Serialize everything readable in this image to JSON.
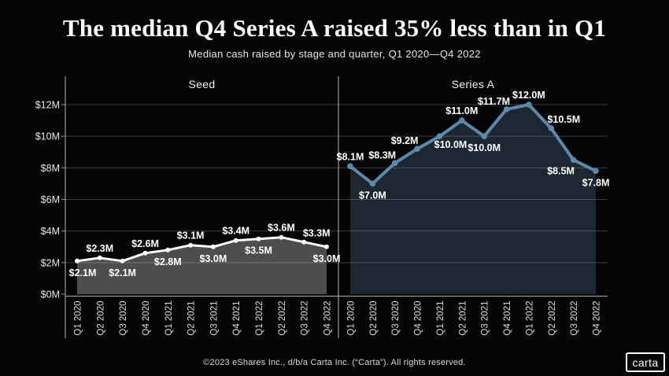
{
  "page": {
    "background": "#050505"
  },
  "header": {
    "title": "The median Q4 Series A raised 35% less than in Q1",
    "subtitle": "Median cash raised by stage and quarter, Q1 2020—Q4 2022"
  },
  "footer": {
    "copyright": "©2023 eShares Inc., d/b/a Carta Inc. (“Carta”). All rights reserved.",
    "logo_text": "carta"
  },
  "chart_data": {
    "type": "area",
    "categories": [
      "Q1 2020",
      "Q2 2020",
      "Q3 2020",
      "Q4 2020",
      "Q1 2021",
      "Q2 2021",
      "Q3 2021",
      "Q4 2021",
      "Q1 2022",
      "Q2 2022",
      "Q3 2022",
      "Q4 2022"
    ],
    "ylim": [
      0,
      12
    ],
    "grid": true,
    "y_ticks": [
      {
        "label": "$0M",
        "value": 0
      },
      {
        "label": "$2M",
        "value": 2
      },
      {
        "label": "$4M",
        "value": 4
      },
      {
        "label": "$6M",
        "value": 6
      },
      {
        "label": "$8M",
        "value": 8
      },
      {
        "label": "$10M",
        "value": 10
      },
      {
        "label": "$12M",
        "value": 12
      }
    ],
    "axis_color": "#999999",
    "grid_color": "rgba(255,255,255,0.22)",
    "tick_label_color": "#e8e8e8",
    "x_label_color": "#dcdcdc",
    "panel_title_color": "#f2f2f2",
    "panels": [
      {
        "name": "Seed",
        "values": [
          2.1,
          2.3,
          2.1,
          2.6,
          2.8,
          3.1,
          3.0,
          3.4,
          3.5,
          3.6,
          3.3,
          3.0
        ],
        "point_labels": [
          "$2.1M",
          "$2.3M",
          "$2.1M",
          "$2.6M",
          "$2.8M",
          "$3.1M",
          "$3.0M",
          "$3.4M",
          "$3.5M",
          "$3.6M",
          "$3.3M",
          "$3.0M"
        ],
        "label_positions": [
          "below",
          "above",
          "below",
          "above",
          "below",
          "above",
          "below",
          "above",
          "below",
          "above",
          "above-right",
          "below"
        ],
        "line_color": "#ffffff",
        "fill_color": "#4d4d4d",
        "label_color": "#ffffff"
      },
      {
        "name": "Series A",
        "values": [
          8.1,
          7.0,
          8.3,
          9.2,
          10.0,
          11.0,
          10.0,
          11.7,
          12.0,
          10.5,
          8.5,
          7.8
        ],
        "point_labels": [
          "$8.1M",
          "$7.0M",
          "$8.3M",
          "$9.2M",
          "$10.0M",
          "$11.0M",
          "$10.0M",
          "$11.7M",
          "$12.0M",
          "$10.5M",
          "$8.5M",
          "$7.8M"
        ],
        "label_positions": [
          "above",
          "below",
          "above-left",
          "above-left",
          "below-right",
          "above",
          "below",
          "above-left",
          "above",
          "above-right",
          "below-left",
          "below"
        ],
        "line_color": "#5c8aab",
        "fill_color": "#1c2732",
        "label_color": "#ffffff"
      }
    ]
  }
}
